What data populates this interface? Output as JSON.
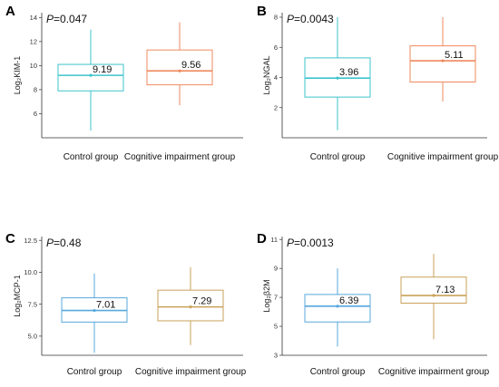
{
  "chart_data": [
    {
      "panel": "A",
      "type": "boxplot",
      "p_value": "0.047",
      "ylabel": "Log₂KIM-1",
      "ylim": [
        4,
        14.4
      ],
      "yticks": [
        "6",
        "8",
        "10",
        "12",
        "14"
      ],
      "categories": [
        "Control group",
        "Cognitive impairment group"
      ],
      "series": [
        {
          "min": 4.6,
          "q1": 7.9,
          "median": 9.19,
          "q3": 10.1,
          "max": 13.0,
          "label": "9.19",
          "color": "#3ec4cc"
        },
        {
          "min": 6.7,
          "q1": 8.4,
          "median": 9.56,
          "q3": 11.3,
          "max": 13.6,
          "label": "9.56",
          "color": "#ef8a5f"
        }
      ]
    },
    {
      "panel": "B",
      "type": "boxplot",
      "p_value": "0.0043",
      "ylabel": "Log₂NGAL",
      "ylim": [
        0,
        8.3
      ],
      "yticks": [
        "2",
        "4",
        "6",
        "8"
      ],
      "categories": [
        "Control group",
        "Cognitive impairment group"
      ],
      "series": [
        {
          "min": 0.5,
          "q1": 2.7,
          "median": 3.96,
          "q3": 5.3,
          "max": 8.0,
          "label": "3.96",
          "color": "#3ec4cc"
        },
        {
          "min": 2.4,
          "q1": 3.7,
          "median": 5.11,
          "q3": 6.1,
          "max": 8.0,
          "label": "5.11",
          "color": "#ef8a5f"
        }
      ]
    },
    {
      "panel": "C",
      "type": "boxplot",
      "p_value": "0.48",
      "ylabel": "Log₂MCP-1",
      "ylim": [
        3.5,
        12.8
      ],
      "yticks": [
        "5.0",
        "7.5",
        "10.0",
        "12.5"
      ],
      "categories": [
        "Control group",
        "Cognitive impairment group"
      ],
      "series": [
        {
          "min": 3.7,
          "q1": 6.1,
          "median": 7.01,
          "q3": 8.0,
          "max": 9.9,
          "label": "7.01",
          "color": "#57a8dd"
        },
        {
          "min": 4.3,
          "q1": 6.2,
          "median": 7.29,
          "q3": 8.6,
          "max": 10.4,
          "label": "7.29",
          "color": "#c9a25a"
        }
      ]
    },
    {
      "panel": "D",
      "type": "boxplot",
      "p_value": "0.0013",
      "ylabel": "Log₂β2M",
      "ylim": [
        3,
        11.2
      ],
      "yticks": [
        "3",
        "5",
        "7",
        "9",
        "11"
      ],
      "categories": [
        "Control group",
        "Cognitive impairment group"
      ],
      "series": [
        {
          "min": 3.6,
          "q1": 5.3,
          "median": 6.39,
          "q3": 7.2,
          "max": 9.0,
          "label": "6.39",
          "color": "#57a8dd"
        },
        {
          "min": 4.1,
          "q1": 6.6,
          "median": 7.13,
          "q3": 8.4,
          "max": 10.0,
          "label": "7.13",
          "color": "#c9a25a"
        }
      ]
    }
  ]
}
